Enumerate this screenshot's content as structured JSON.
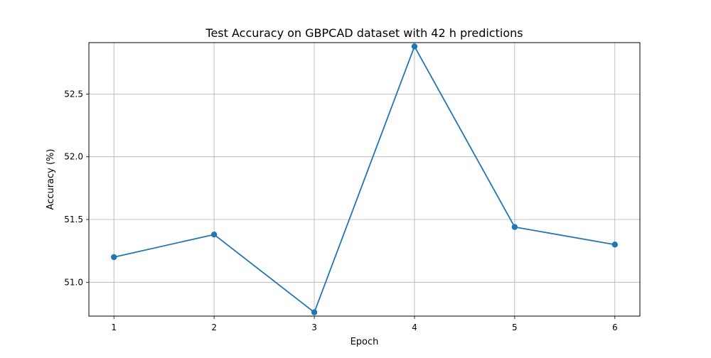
{
  "chart_data": {
    "type": "line",
    "title": "Test Accuracy on GBPCAD dataset with 42 h predictions",
    "xlabel": "Epoch",
    "ylabel": "Accuracy (%)",
    "x": [
      1,
      2,
      3,
      4,
      5,
      6
    ],
    "xticks": [
      "1",
      "2",
      "3",
      "4",
      "5",
      "6"
    ],
    "xlim": [
      0.75,
      6.25
    ],
    "ylim": [
      50.73,
      52.91
    ],
    "yticks": [
      "51.0",
      "51.5",
      "52.0",
      "52.5"
    ],
    "series": [
      {
        "values": [
          51.2,
          51.38,
          50.76,
          52.88,
          51.44,
          51.3
        ],
        "color": "#1f77b4",
        "marker": "circle"
      }
    ],
    "grid": true,
    "legend": "none"
  }
}
